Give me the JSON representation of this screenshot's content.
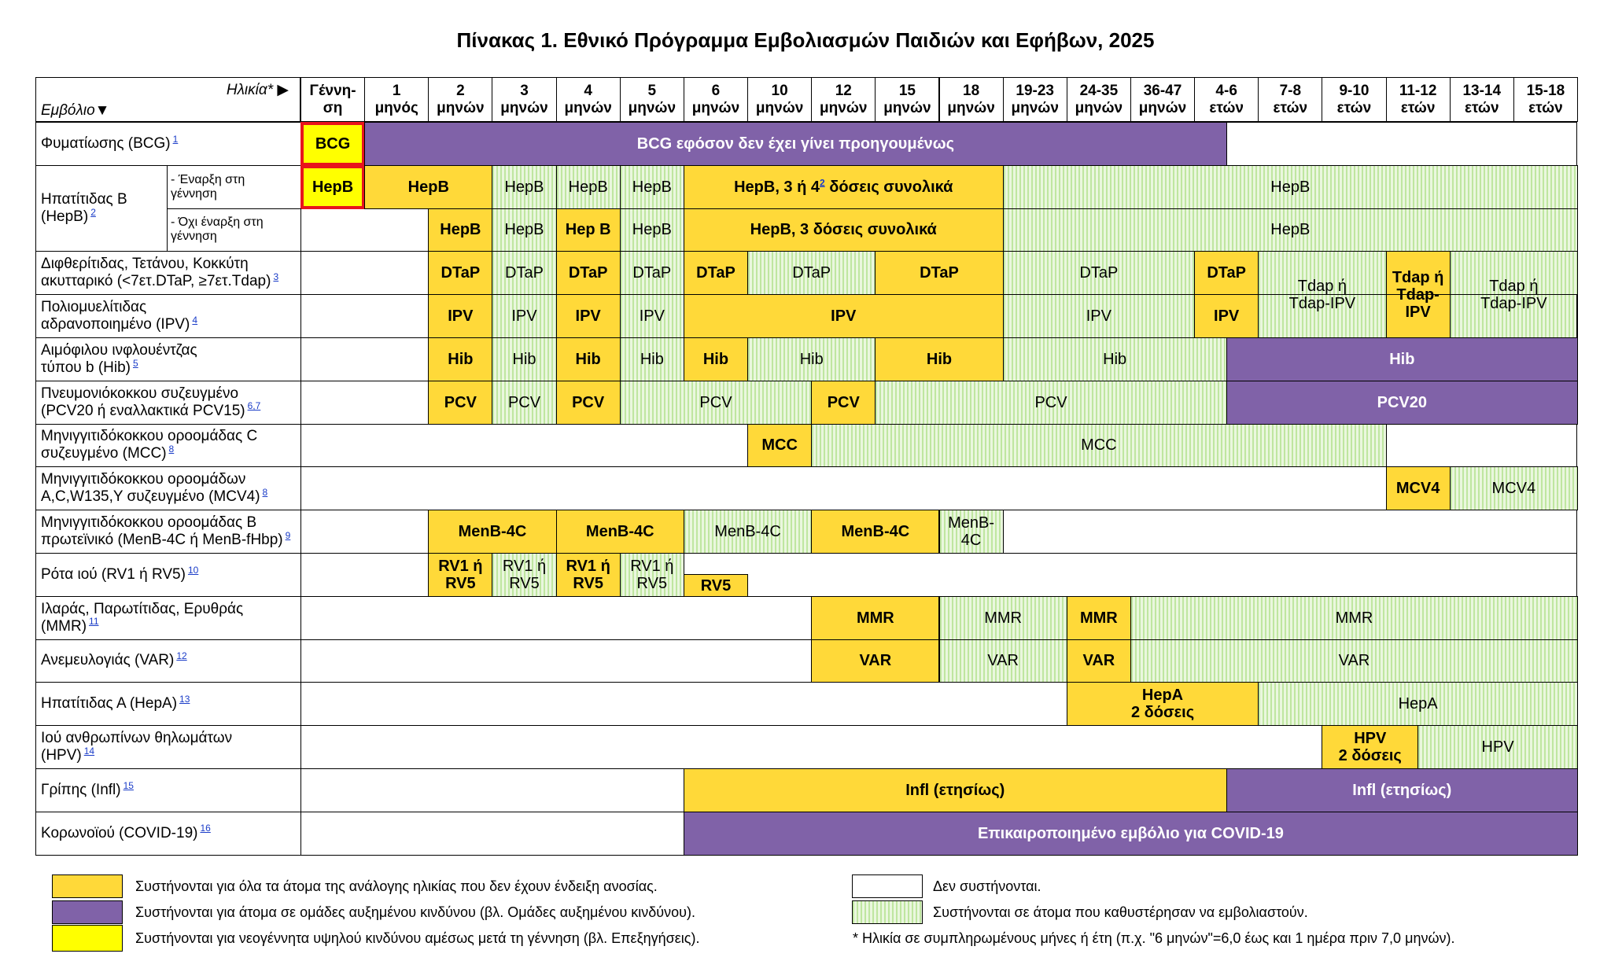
{
  "title": "Πίνακας 1. Εθνικό Πρόγραμμα Εμβολιασμών Παιδιών και Εφήβων, 2025",
  "header": {
    "age": "Ηλικία* ▶",
    "vaccine": "Εμβόλιο▼",
    "columns": [
      [
        "Γέννη-",
        "ση"
      ],
      [
        "1",
        "μηνός"
      ],
      [
        "2",
        "μηνών"
      ],
      [
        "3",
        "μηνών"
      ],
      [
        "4",
        "μηνών"
      ],
      [
        "5",
        "μηνών"
      ],
      [
        "6",
        "μηνών"
      ],
      [
        "10",
        "μηνών"
      ],
      [
        "12",
        "μηνών"
      ],
      [
        "15",
        "μηνών"
      ],
      [
        "18",
        "μηνών"
      ],
      [
        "19-23",
        "μηνών"
      ],
      [
        "24-35",
        "μηνών"
      ],
      [
        "36-47",
        "μηνών"
      ],
      [
        "4-6",
        "ετών"
      ],
      [
        "7-8",
        "ετών"
      ],
      [
        "9-10",
        "ετών"
      ],
      [
        "11-12",
        "ετών"
      ],
      [
        "13-14",
        "ετών"
      ],
      [
        "15-18",
        "ετών"
      ]
    ]
  },
  "vaccines": [
    {
      "label": [
        "Φυματίωσης (BCG)"
      ],
      "note": "1",
      "lines": [
        {
          "cells": [
            {
              "from": 0,
              "to": 1,
              "kind": "birth",
              "text": "BCG"
            },
            {
              "from": 1,
              "to": 14.5,
              "kind": "risk",
              "text": "BCG εφόσον δεν έχει γίνει προηγουμένως"
            }
          ]
        }
      ]
    },
    {
      "label": [
        "Ηπατίτιδας Β",
        "(HepB)"
      ],
      "note": "2",
      "lines": [
        {
          "sublabel": [
            "- Έναρξη στη",
            "γέννηση"
          ],
          "cells": [
            {
              "from": 0,
              "to": 1,
              "kind": "birth",
              "text": "HepB"
            },
            {
              "from": 1,
              "to": 3,
              "kind": "rec",
              "text": "HepB"
            },
            {
              "from": 3,
              "to": 4,
              "kind": "catch",
              "text": "HepB"
            },
            {
              "from": 4,
              "to": 5,
              "kind": "catch",
              "text": "HepB"
            },
            {
              "from": 5,
              "to": 6,
              "kind": "catch",
              "text": "HepB"
            },
            {
              "from": 6,
              "to": 11,
              "kind": "rec",
              "text": "HepB, 3 ή 4",
              "sup": "2",
              "after": " δόσεις συνολικά"
            },
            {
              "from": 11,
              "to": 20,
              "kind": "catch",
              "text": "HepB"
            }
          ]
        },
        {
          "sublabel": [
            "- Όχι έναρξη στη",
            "γέννηση"
          ],
          "cells": [
            {
              "from": 2,
              "to": 3,
              "kind": "rec",
              "text": "HepB"
            },
            {
              "from": 3,
              "to": 4,
              "kind": "catch",
              "text": "HepB"
            },
            {
              "from": 4,
              "to": 5,
              "kind": "rec",
              "text": "Hep B"
            },
            {
              "from": 5,
              "to": 6,
              "kind": "catch",
              "text": "HepB"
            },
            {
              "from": 6,
              "to": 11,
              "kind": "rec",
              "text": "HepB, 3 δόσεις συνολικά"
            },
            {
              "from": 11,
              "to": 20,
              "kind": "catch",
              "text": "HepB"
            }
          ]
        }
      ]
    },
    {
      "label": [
        "Διφθερίτιδας, Τετάνου, Κοκκύτη",
        "ακυτταρικό (<7ετ.DTaP, ≥7ετ.Tdap)"
      ],
      "note": "3",
      "lines": [
        {
          "cells": [
            {
              "from": 2,
              "to": 3,
              "kind": "rec",
              "text": "DTaP"
            },
            {
              "from": 3,
              "to": 4,
              "kind": "catch",
              "text": "DTaP"
            },
            {
              "from": 4,
              "to": 5,
              "kind": "rec",
              "text": "DTaP"
            },
            {
              "from": 5,
              "to": 6,
              "kind": "catch",
              "text": "DTaP"
            },
            {
              "from": 6,
              "to": 7,
              "kind": "rec",
              "text": "DTaP"
            },
            {
              "from": 7,
              "to": 9,
              "kind": "catch",
              "text": "DTaP"
            },
            {
              "from": 9,
              "to": 11,
              "kind": "rec",
              "text": "DTaP"
            },
            {
              "from": 11,
              "to": 14,
              "kind": "catch",
              "text": "DTaP"
            },
            {
              "from": 14,
              "to": 15,
              "kind": "rec",
              "text": "DTaP"
            },
            {
              "from": 15,
              "to": 17,
              "kind": "catch",
              "rows": 2,
              "text": [
                "Tdap ή",
                "Tdap-IPV"
              ]
            },
            {
              "from": 17,
              "to": 18,
              "kind": "rec",
              "rows": 2,
              "text": [
                "Tdap ή",
                "Tdap-",
                "IPV"
              ]
            },
            {
              "from": 18,
              "to": 20,
              "kind": "catch",
              "rows": 2,
              "text": [
                "Tdap ή",
                "Tdap-IPV"
              ]
            }
          ]
        }
      ]
    },
    {
      "label": [
        "Πολιομυελίτιδας",
        "αδρανοποιημένο (IPV)"
      ],
      "note": "4",
      "lines": [
        {
          "cells": [
            {
              "from": 2,
              "to": 3,
              "kind": "rec",
              "text": "IPV"
            },
            {
              "from": 3,
              "to": 4,
              "kind": "catch",
              "text": "IPV"
            },
            {
              "from": 4,
              "to": 5,
              "kind": "rec",
              "text": "IPV"
            },
            {
              "from": 5,
              "to": 6,
              "kind": "catch",
              "text": "IPV"
            },
            {
              "from": 6,
              "to": 11,
              "kind": "rec",
              "text": "IPV"
            },
            {
              "from": 11,
              "to": 14,
              "kind": "catch",
              "text": "IPV"
            },
            {
              "from": 14,
              "to": 15,
              "kind": "rec",
              "text": "IPV"
            }
          ]
        }
      ]
    },
    {
      "label": [
        "Αιμόφιλου ινφλουέντζας",
        "τύπου b (Hib)"
      ],
      "note": "5",
      "lines": [
        {
          "cells": [
            {
              "from": 2,
              "to": 3,
              "kind": "rec",
              "text": "Hib"
            },
            {
              "from": 3,
              "to": 4,
              "kind": "catch",
              "text": "Hib"
            },
            {
              "from": 4,
              "to": 5,
              "kind": "rec",
              "text": "Hib"
            },
            {
              "from": 5,
              "to": 6,
              "kind": "catch",
              "text": "Hib"
            },
            {
              "from": 6,
              "to": 7,
              "kind": "rec",
              "text": "Hib"
            },
            {
              "from": 7,
              "to": 9,
              "kind": "catch",
              "text": "Hib"
            },
            {
              "from": 9,
              "to": 11,
              "kind": "rec",
              "text": "Hib"
            },
            {
              "from": 11,
              "to": 14.5,
              "kind": "catch",
              "text": "Hib"
            },
            {
              "from": 14.5,
              "to": 20,
              "kind": "risk",
              "text": "Hib"
            }
          ]
        }
      ]
    },
    {
      "label": [
        "Πνευμονιόκοκκου συζευγμένο",
        "(PCV20 ή εναλλακτικά PCV15)"
      ],
      "note": "6,7",
      "lines": [
        {
          "cells": [
            {
              "from": 2,
              "to": 3,
              "kind": "rec",
              "text": "PCV"
            },
            {
              "from": 3,
              "to": 4,
              "kind": "catch",
              "text": "PCV"
            },
            {
              "from": 4,
              "to": 5,
              "kind": "rec",
              "text": "PCV"
            },
            {
              "from": 5,
              "to": 8,
              "kind": "catch",
              "text": "PCV"
            },
            {
              "from": 8,
              "to": 9,
              "kind": "rec",
              "text": "PCV"
            },
            {
              "from": 9,
              "to": 14.5,
              "kind": "catch",
              "text": "PCV"
            },
            {
              "from": 14.5,
              "to": 20,
              "kind": "risk",
              "text": "PCV20"
            }
          ]
        }
      ]
    },
    {
      "label": [
        "Μηνιγγιτιδόκοκκου οροομάδας C",
        "συζευγμένο (MCC)"
      ],
      "note": "8",
      "lines": [
        {
          "cells": [
            {
              "from": 7,
              "to": 8,
              "kind": "rec",
              "text": "MCC"
            },
            {
              "from": 8,
              "to": 17,
              "kind": "catch",
              "text": "MCC"
            }
          ]
        }
      ]
    },
    {
      "label": [
        "Μηνιγγιτιδόκοκκου οροομάδων",
        "A,C,W135,Y συζευγμένο (MCV4)"
      ],
      "note": "8",
      "lines": [
        {
          "cells": [
            {
              "from": 17,
              "to": 18,
              "kind": "rec",
              "text": "MCV4"
            },
            {
              "from": 18,
              "to": 20,
              "kind": "catch",
              "text": "MCV4"
            }
          ]
        }
      ]
    },
    {
      "label": [
        "Μηνιγγιτιδόκοκκου οροομάδας Β",
        "πρωτεϊνικό (MenB-4C ή MenB-fHbp)"
      ],
      "note": "9",
      "lines": [
        {
          "cells": [
            {
              "from": 2,
              "to": 4,
              "kind": "rec",
              "text": "MenB-4C"
            },
            {
              "from": 4,
              "to": 6,
              "kind": "rec",
              "text": "MenB-4C"
            },
            {
              "from": 6,
              "to": 8,
              "kind": "catch",
              "text": "MenB-4C"
            },
            {
              "from": 8,
              "to": 10,
              "kind": "rec",
              "text": "MenB-4C"
            },
            {
              "from": 10,
              "to": 11,
              "kind": "catch",
              "text": [
                "MenB-",
                "4C"
              ]
            }
          ]
        }
      ]
    },
    {
      "label": [
        "Ρότα ιού (RV1 ή RV5)"
      ],
      "note": "10",
      "lines": [
        {
          "cells": [
            {
              "from": 2,
              "to": 3,
              "kind": "rec",
              "text": [
                "RV1 ή",
                "RV5"
              ]
            },
            {
              "from": 3,
              "to": 4,
              "kind": "catch",
              "text": [
                "RV1 ή",
                "RV5"
              ]
            },
            {
              "from": 4,
              "to": 5,
              "kind": "rec",
              "text": [
                "RV1 ή",
                "RV5"
              ]
            },
            {
              "from": 5,
              "to": 6,
              "kind": "catch",
              "text": [
                "RV1 ή",
                "RV5"
              ]
            },
            {
              "from": 6,
              "to": 7,
              "kind": "rec",
              "half": "bottom",
              "text": "RV5"
            }
          ]
        }
      ]
    },
    {
      "label": [
        "Ιλαράς, Παρωτίτιδας, Ερυθράς",
        "(MMR)"
      ],
      "note": "11",
      "lines": [
        {
          "cells": [
            {
              "from": 8,
              "to": 10,
              "kind": "rec",
              "text": "MMR"
            },
            {
              "from": 10,
              "to": 12,
              "kind": "catch",
              "text": "MMR"
            },
            {
              "from": 12,
              "to": 13,
              "kind": "rec",
              "text": "MMR"
            },
            {
              "from": 13,
              "to": 20,
              "kind": "catch",
              "text": "MMR"
            }
          ]
        }
      ]
    },
    {
      "label": [
        "Ανεμευλογιάς (VAR)"
      ],
      "note": "12",
      "lines": [
        {
          "cells": [
            {
              "from": 8,
              "to": 10,
              "kind": "rec",
              "text": "VAR"
            },
            {
              "from": 10,
              "to": 12,
              "kind": "catch",
              "text": "VAR"
            },
            {
              "from": 12,
              "to": 13,
              "kind": "rec",
              "text": "VAR"
            },
            {
              "from": 13,
              "to": 20,
              "kind": "catch",
              "text": "VAR"
            }
          ]
        }
      ]
    },
    {
      "label": [
        "Ηπατίτιδας Α (HepA)"
      ],
      "note": "13",
      "lines": [
        {
          "cells": [
            {
              "from": 12,
              "to": 15,
              "kind": "rec",
              "text": [
                "HepA",
                "2 δόσεις"
              ]
            },
            {
              "from": 15,
              "to": 20,
              "kind": "catch",
              "text": "HepA"
            }
          ]
        }
      ]
    },
    {
      "label": [
        "Ιού ανθρωπίνων θηλωμάτων",
        "(HPV)"
      ],
      "note": "14",
      "lines": [
        {
          "cells": [
            {
              "from": 16,
              "to": 17.5,
              "kind": "rec",
              "text": [
                "HPV",
                "2 δόσεις"
              ]
            },
            {
              "from": 17.5,
              "to": 20,
              "kind": "catch",
              "text": "HPV"
            }
          ]
        }
      ]
    },
    {
      "label": [
        "Γρίπης (Infl)"
      ],
      "note": "15",
      "lines": [
        {
          "cells": [
            {
              "from": 6,
              "to": 14.5,
              "kind": "rec",
              "text": "Infl (ετησίως)"
            },
            {
              "from": 14.5,
              "to": 20,
              "kind": "risk",
              "text": "Infl (ετησίως)"
            }
          ]
        }
      ]
    },
    {
      "label": [
        "Κορωνοϊού (COVID-19)"
      ],
      "note": "16",
      "lines": [
        {
          "cells": [
            {
              "from": 6,
              "to": 20,
              "kind": "risk",
              "text": "Επικαιροποιημένο εμβόλιο για COVID-19"
            }
          ]
        }
      ]
    }
  ],
  "legend": [
    {
      "kind": "rec",
      "text": "Συστήνονται για όλα τα άτομα της ανάλογης ηλικίας που δεν έχουν ένδειξη ανοσίας."
    },
    {
      "kind": "risk",
      "text": "Συστήνονται για άτομα σε ομάδες αυξημένου κινδύνου (βλ. Ομάδες αυξημένου κινδύνου)."
    },
    {
      "kind": "birth",
      "text": "Συστήνονται για νεογέννητα υψηλού κινδύνου αμέσως μετά τη γέννηση (βλ. Επεξηγήσεις)."
    },
    {
      "kind": "none",
      "text": "Δεν συστήνονται."
    },
    {
      "kind": "catch",
      "text": "Συστήνονται σε άτομα που καθυστέρησαν να εμβολιαστούν."
    }
  ],
  "footnote": "* Ηλικία σε συμπληρωμένους μήνες ή έτη (π.χ. \"6 μηνών\"=6,0 έως και 1 ημέρα πριν 7,0 μηνών)."
}
